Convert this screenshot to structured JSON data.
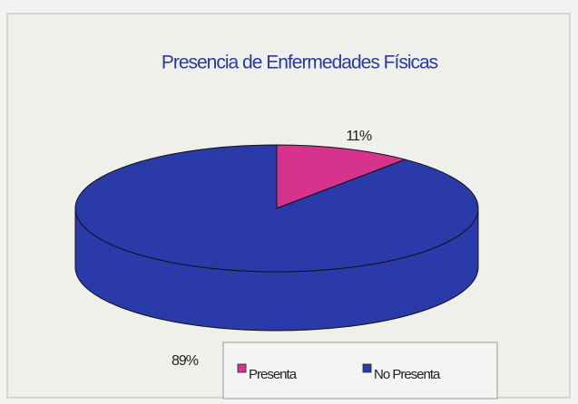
{
  "chart_data": {
    "type": "pie3d",
    "title": "Presencia de Enfermedades Físicas",
    "categories": [
      "Presenta",
      "No Presenta"
    ],
    "values": [
      11,
      89
    ],
    "value_labels": [
      "11%",
      "89%"
    ],
    "colors": [
      "#d6338f",
      "#2a3aa8"
    ],
    "legend": "bottom"
  }
}
